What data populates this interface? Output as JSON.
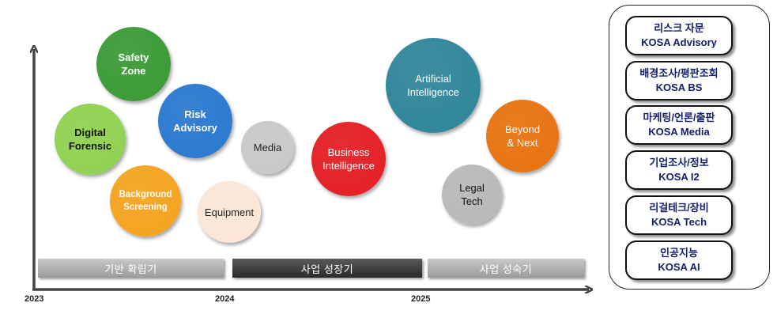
{
  "bubbles": [
    {
      "label": "Safety\nZone",
      "color": "#3a9a35",
      "text_color": "#ffffff",
      "bold": true
    },
    {
      "label": "Digital\nForensic",
      "color": "#8fd14f",
      "text_color": "#111111",
      "bold": true
    },
    {
      "label": "Risk\nAdvisory",
      "color": "#2a78cf",
      "text_color": "#ffffff",
      "bold": true
    },
    {
      "label": "Background\nScreening",
      "color": "#f4a31e",
      "text_color": "#ffffff",
      "bold": true
    },
    {
      "label": "Equipment",
      "color": "#fbe6d6",
      "text_color": "#222222",
      "bold": false
    },
    {
      "label": "Media",
      "color": "#c8c8c8",
      "text_color": "#222222",
      "bold": false
    },
    {
      "label": "Business\nIntelligence",
      "color": "#e31e24",
      "text_color": "#ffffff",
      "bold": false
    },
    {
      "label": "Artificial\nIntelligence",
      "color": "#2f8599",
      "text_color": "#ffffff",
      "bold": false
    },
    {
      "label": "Beyond\n& Next",
      "color": "#e8720f",
      "text_color": "#ffffff",
      "bold": false
    },
    {
      "label": "Legal\nTech",
      "color": "#b8b8b8",
      "text_color": "#111111",
      "bold": false
    }
  ],
  "phases": [
    {
      "label": "기반 확립기",
      "style": "light"
    },
    {
      "label": "사업 성장기",
      "style": "dark"
    },
    {
      "label": "사업 성숙기",
      "style": "light"
    }
  ],
  "years": [
    "2023",
    "2024",
    "2025"
  ],
  "services": [
    {
      "ko": "리스크 자문",
      "en": "KOSA Advisory"
    },
    {
      "ko": "배경조사/평판조회",
      "en": "KOSA BS"
    },
    {
      "ko": "마케팅/언론/출판",
      "en": "KOSA Media"
    },
    {
      "ko": "기업조사/정보",
      "en": "KOSA I2"
    },
    {
      "ko": "리걸테크/장비",
      "en": "KOSA Tech"
    },
    {
      "ko": "인공지능",
      "en": "KOSA AI"
    }
  ]
}
